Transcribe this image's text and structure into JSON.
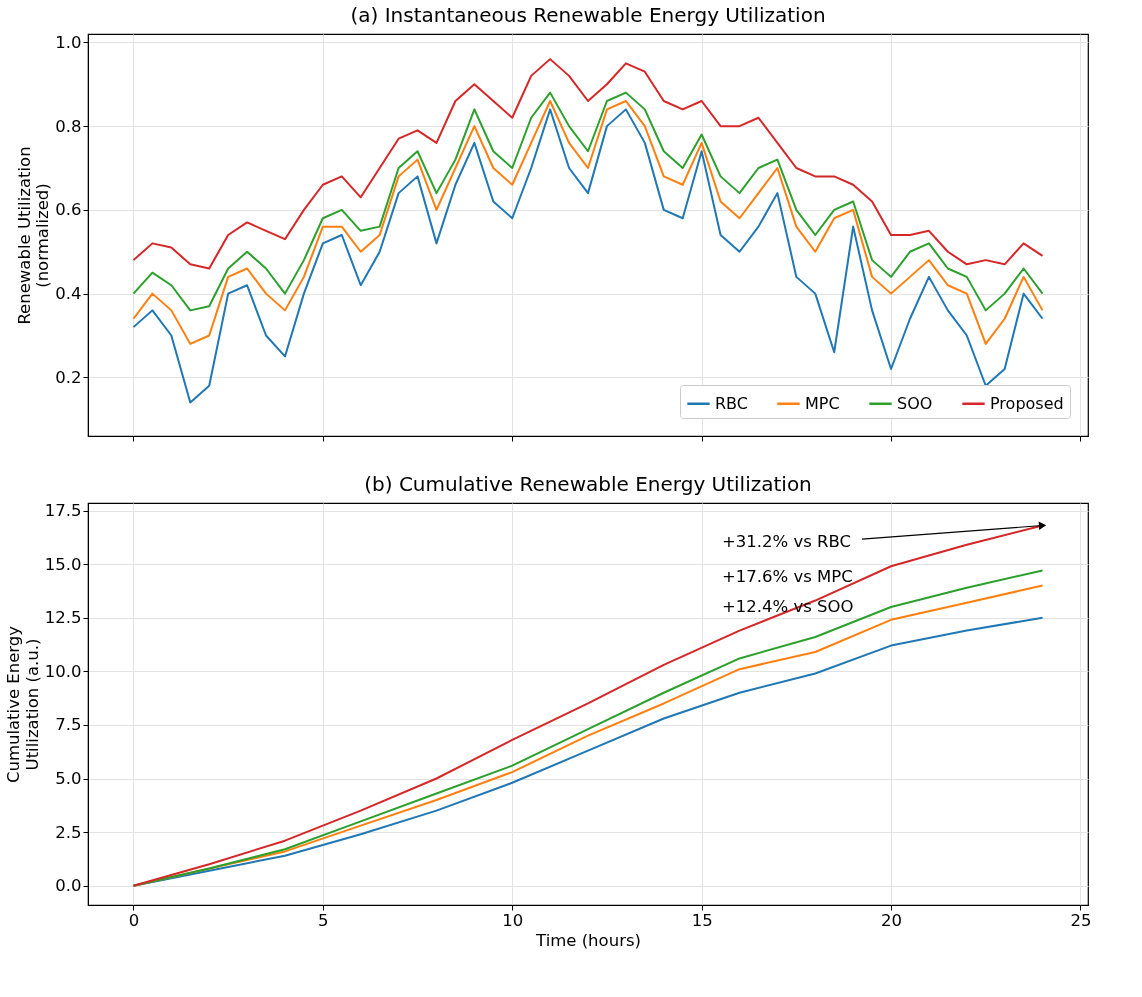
{
  "chart_data": [
    {
      "type": "line",
      "title": "(a) Instantaneous Renewable Energy Utilization",
      "ylabel": "Renewable Utilization\n(normalized)",
      "x": [
        0,
        0.5,
        1,
        1.5,
        2,
        2.5,
        3,
        3.5,
        4,
        4.5,
        5,
        5.5,
        6,
        6.5,
        7,
        7.5,
        8,
        8.5,
        9,
        9.5,
        10,
        10.5,
        11,
        11.5,
        12,
        12.5,
        13,
        13.5,
        14,
        14.5,
        15,
        15.5,
        16,
        16.5,
        17,
        17.5,
        18,
        18.5,
        19,
        19.5,
        20,
        20.5,
        21,
        21.5,
        22,
        22.5,
        23,
        23.5,
        24
      ],
      "series": [
        {
          "name": "RBC",
          "color": "#1f77b4",
          "values": [
            0.32,
            0.36,
            0.3,
            0.14,
            0.18,
            0.4,
            0.42,
            0.3,
            0.25,
            0.4,
            0.52,
            0.54,
            0.42,
            0.5,
            0.64,
            0.68,
            0.52,
            0.66,
            0.76,
            0.62,
            0.58,
            0.7,
            0.84,
            0.7,
            0.64,
            0.8,
            0.84,
            0.76,
            0.6,
            0.58,
            0.74,
            0.54,
            0.5,
            0.56,
            0.64,
            0.44,
            0.4,
            0.26,
            0.56,
            0.36,
            0.22,
            0.34,
            0.44,
            0.36,
            0.3,
            0.18,
            0.22,
            0.4,
            0.34
          ]
        },
        {
          "name": "MPC",
          "color": "#ff7f0e",
          "values": [
            0.34,
            0.4,
            0.36,
            0.28,
            0.3,
            0.44,
            0.46,
            0.4,
            0.36,
            0.44,
            0.56,
            0.56,
            0.5,
            0.54,
            0.68,
            0.72,
            0.6,
            0.7,
            0.8,
            0.7,
            0.66,
            0.76,
            0.86,
            0.76,
            0.7,
            0.84,
            0.86,
            0.8,
            0.68,
            0.66,
            0.76,
            0.62,
            0.58,
            0.64,
            0.7,
            0.56,
            0.5,
            0.58,
            0.6,
            0.44,
            0.4,
            0.44,
            0.48,
            0.42,
            0.4,
            0.28,
            0.34,
            0.44,
            0.36
          ]
        },
        {
          "name": "SOO",
          "color": "#2ca02c",
          "values": [
            0.4,
            0.45,
            0.42,
            0.36,
            0.37,
            0.46,
            0.5,
            0.46,
            0.4,
            0.48,
            0.58,
            0.6,
            0.55,
            0.56,
            0.7,
            0.74,
            0.64,
            0.72,
            0.84,
            0.74,
            0.7,
            0.82,
            0.88,
            0.8,
            0.74,
            0.86,
            0.88,
            0.84,
            0.74,
            0.7,
            0.78,
            0.68,
            0.64,
            0.7,
            0.72,
            0.6,
            0.54,
            0.6,
            0.62,
            0.48,
            0.44,
            0.5,
            0.52,
            0.46,
            0.44,
            0.36,
            0.4,
            0.46,
            0.4
          ]
        },
        {
          "name": "Proposed",
          "color": "#d62728",
          "values": [
            0.48,
            0.52,
            0.51,
            0.47,
            0.46,
            0.54,
            0.57,
            0.55,
            0.53,
            0.6,
            0.66,
            0.68,
            0.63,
            0.7,
            0.77,
            0.79,
            0.76,
            0.86,
            0.9,
            0.86,
            0.82,
            0.92,
            0.96,
            0.92,
            0.86,
            0.9,
            0.95,
            0.93,
            0.86,
            0.84,
            0.86,
            0.8,
            0.8,
            0.82,
            0.76,
            0.7,
            0.68,
            0.68,
            0.66,
            0.62,
            0.54,
            0.54,
            0.55,
            0.5,
            0.47,
            0.48,
            0.47,
            0.52,
            0.49
          ]
        }
      ],
      "xlim": [
        -1.2,
        25.2
      ],
      "ylim": [
        0.06,
        1.02
      ],
      "xticks": [
        0,
        5,
        10,
        15,
        20,
        25
      ],
      "yticks": [
        {
          "value": 0.2,
          "label": "0.2"
        },
        {
          "value": 0.4,
          "label": "0.4"
        },
        {
          "value": 0.6,
          "label": "0.6"
        },
        {
          "value": 0.8,
          "label": "0.8"
        },
        {
          "value": 1,
          "label": "1.0"
        }
      ],
      "grid": true,
      "legend": "bottom right",
      "tick_labels": "y"
    },
    {
      "type": "line",
      "title": "(b) Cumulative Renewable Energy Utilization",
      "xlabel": "Time (hours)",
      "ylabel": "Cumulative Energy\nUtilization (a.u.)",
      "x": [
        0,
        2,
        4,
        6,
        8,
        10,
        12,
        14,
        16,
        18,
        20,
        22,
        24
      ],
      "series": [
        {
          "color": "#1f77b4",
          "values": [
            0,
            0.7,
            1.4,
            2.4,
            3.5,
            4.8,
            6.3,
            7.8,
            9.0,
            9.9,
            11.2,
            11.9,
            12.5
          ]
        },
        {
          "color": "#ff7f0e",
          "values": [
            0,
            0.8,
            1.6,
            2.8,
            4.0,
            5.3,
            7.0,
            8.5,
            10.1,
            10.9,
            12.4,
            13.2,
            14.0
          ]
        },
        {
          "color": "#2ca02c",
          "values": [
            0,
            0.8,
            1.7,
            3.0,
            4.3,
            5.6,
            7.3,
            9.0,
            10.6,
            11.6,
            13.0,
            13.9,
            14.7
          ]
        },
        {
          "color": "#d62728",
          "values": [
            0,
            1.0,
            2.1,
            3.5,
            5.0,
            6.8,
            8.5,
            10.3,
            11.9,
            13.3,
            14.9,
            15.9,
            16.8
          ]
        }
      ],
      "xlim": [
        -1.2,
        25.2
      ],
      "ylim": [
        -0.9,
        17.85
      ],
      "xticks": [
        0,
        5,
        10,
        15,
        20,
        25
      ],
      "yticks": [
        {
          "value": 0,
          "label": "0.0"
        },
        {
          "value": 2.5,
          "label": "2.5"
        },
        {
          "value": 5,
          "label": "5.0"
        },
        {
          "value": 7.5,
          "label": "7.5"
        },
        {
          "value": 10,
          "label": "10.0"
        },
        {
          "value": 12.5,
          "label": "12.5"
        },
        {
          "value": 15,
          "label": "15.0"
        },
        {
          "value": 17.5,
          "label": "17.5"
        }
      ],
      "grid": true,
      "annotations": [
        {
          "text": "+31.2% vs RBC",
          "x": 24,
          "y": 16.8
        },
        "+17.6% vs MPC",
        "+12.4% vs SOO"
      ]
    }
  ]
}
